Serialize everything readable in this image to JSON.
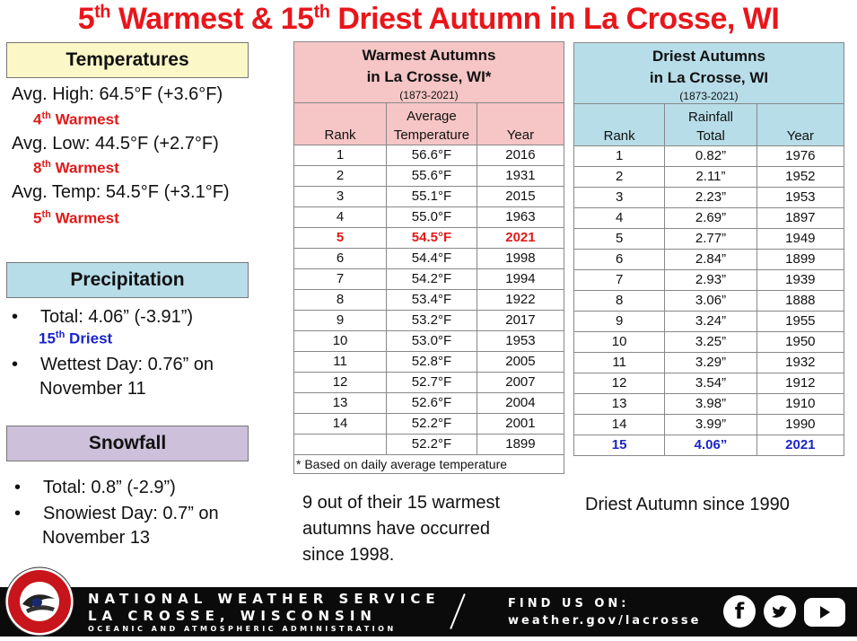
{
  "title": {
    "part1": "5",
    "sup1": "th",
    "part2": " Warmest & 15",
    "sup2": "th",
    "part3": " Driest  Autumn in La Crosse, WI"
  },
  "temperatures": {
    "header": "Temperatures",
    "avg_high": "Avg. High:  64.5°F (+3.6°F)",
    "avg_high_rank": "4",
    "avg_high_rank_sup": "th",
    "avg_high_rank_word": " Warmest",
    "avg_low": "Avg. Low:  44.5°F (+2.7°F)",
    "avg_low_rank": "8",
    "avg_low_rank_sup": "th",
    "avg_low_rank_word": " Warmest",
    "avg_temp": "Avg. Temp:  54.5°F (+3.1°F)",
    "avg_temp_rank": "5",
    "avg_temp_rank_sup": "th",
    "avg_temp_rank_word": " Warmest"
  },
  "precipitation": {
    "header": "Precipitation",
    "total": "Total:  4.06” (-3.91”)",
    "total_rank": "15",
    "total_rank_sup": "th",
    "total_rank_word": " Driest",
    "wettest_line1": "Wettest Day:  0.76” on",
    "wettest_line2": "November 11"
  },
  "snowfall": {
    "header": "Snowfall",
    "total": "Total:  0.8” (-2.9”)",
    "snowiest_line1": "Snowiest Day:  0.7” on",
    "snowiest_line2": "November 13"
  },
  "bullet": "•",
  "warmest": {
    "title_line1": "Warmest Autumns",
    "title_line2": "in La Crosse, WI*",
    "period": "(1873-2021)",
    "col_rank": "Rank",
    "col_value_line1": "Average",
    "col_value_line2": "Temperature",
    "col_year": "Year",
    "rows": [
      {
        "rank": "1",
        "value": "56.6°F",
        "year": "2016"
      },
      {
        "rank": "2",
        "value": "55.6°F",
        "year": "1931"
      },
      {
        "rank": "3",
        "value": "55.1°F",
        "year": "2015"
      },
      {
        "rank": "4",
        "value": "55.0°F",
        "year": "1963"
      },
      {
        "rank": "5",
        "value": "54.5°F",
        "year": "2021"
      },
      {
        "rank": "6",
        "value": "54.4°F",
        "year": "1998"
      },
      {
        "rank": "7",
        "value": "54.2°F",
        "year": "1994"
      },
      {
        "rank": "8",
        "value": "53.4°F",
        "year": "1922"
      },
      {
        "rank": "9",
        "value": "53.2°F",
        "year": "2017"
      },
      {
        "rank": "10",
        "value": "53.0°F",
        "year": "1953"
      },
      {
        "rank": "11",
        "value": "52.8°F",
        "year": "2005"
      },
      {
        "rank": "12",
        "value": "52.7°F",
        "year": "2007"
      },
      {
        "rank": "13",
        "value": "52.6°F",
        "year": "2004"
      },
      {
        "rank": "14",
        "value": "52.2°F",
        "year": "2001"
      },
      {
        "rank": "",
        "value": "52.2°F",
        "year": "1899"
      }
    ],
    "highlight_index": 4,
    "highlight_color": "#e01a1a",
    "footnote": "* Based on daily average temperature",
    "note_line1": "9 out of their 15 warmest",
    "note_line2": "autumns have occurred",
    "note_line3": "since 1998."
  },
  "driest": {
    "title_line1": "Driest Autumns",
    "title_line2": "in La Crosse, WI",
    "period": "(1873-2021)",
    "col_rank": "Rank",
    "col_value_line1": "Rainfall",
    "col_value_line2": "Total",
    "col_year": "Year",
    "rows": [
      {
        "rank": "1",
        "value": "0.82”",
        "year": "1976"
      },
      {
        "rank": "2",
        "value": "2.11”",
        "year": "1952"
      },
      {
        "rank": "3",
        "value": "2.23”",
        "year": "1953"
      },
      {
        "rank": "4",
        "value": "2.69”",
        "year": "1897"
      },
      {
        "rank": "5",
        "value": "2.77”",
        "year": "1949"
      },
      {
        "rank": "6",
        "value": "2.84”",
        "year": "1899"
      },
      {
        "rank": "7",
        "value": "2.93”",
        "year": "1939"
      },
      {
        "rank": "8",
        "value": "3.06”",
        "year": "1888"
      },
      {
        "rank": "9",
        "value": "3.24”",
        "year": "1955"
      },
      {
        "rank": "10",
        "value": "3.25”",
        "year": "1950"
      },
      {
        "rank": "11",
        "value": "3.29”",
        "year": "1932"
      },
      {
        "rank": "12",
        "value": "3.54”",
        "year": "1912"
      },
      {
        "rank": "13",
        "value": "3.98”",
        "year": "1910"
      },
      {
        "rank": "14",
        "value": "3.99”",
        "year": "1990"
      },
      {
        "rank": "15",
        "value": "4.06”",
        "year": "2021"
      }
    ],
    "highlight_index": 14,
    "highlight_color": "#1a25c8",
    "note": "Driest Autumn since 1990"
  },
  "footer": {
    "org_line1": "NATIONAL WEATHER SERVICE",
    "org_line2": "LA CROSSE, WISCONSIN",
    "org_line3": "OCEANIC AND ATMOSPHERIC ADMINISTRATION",
    "find_us": "FIND US ON:",
    "url": "weather.gov/lacrosse",
    "logo_text_top": "NATIONAL WEATHER SERVICE",
    "logo_text_bottom": "LA CROSSE, WI",
    "icons": [
      "facebook-icon",
      "twitter-icon",
      "youtube-icon"
    ]
  },
  "colors": {
    "title": "#e8161b",
    "temp_header_bg": "#fcf7c6",
    "precip_header_bg": "#b7dde8",
    "snow_header_bg": "#ccc0da",
    "warmest_header_bg": "#f6c5c5",
    "driest_header_bg": "#b7dde8"
  }
}
